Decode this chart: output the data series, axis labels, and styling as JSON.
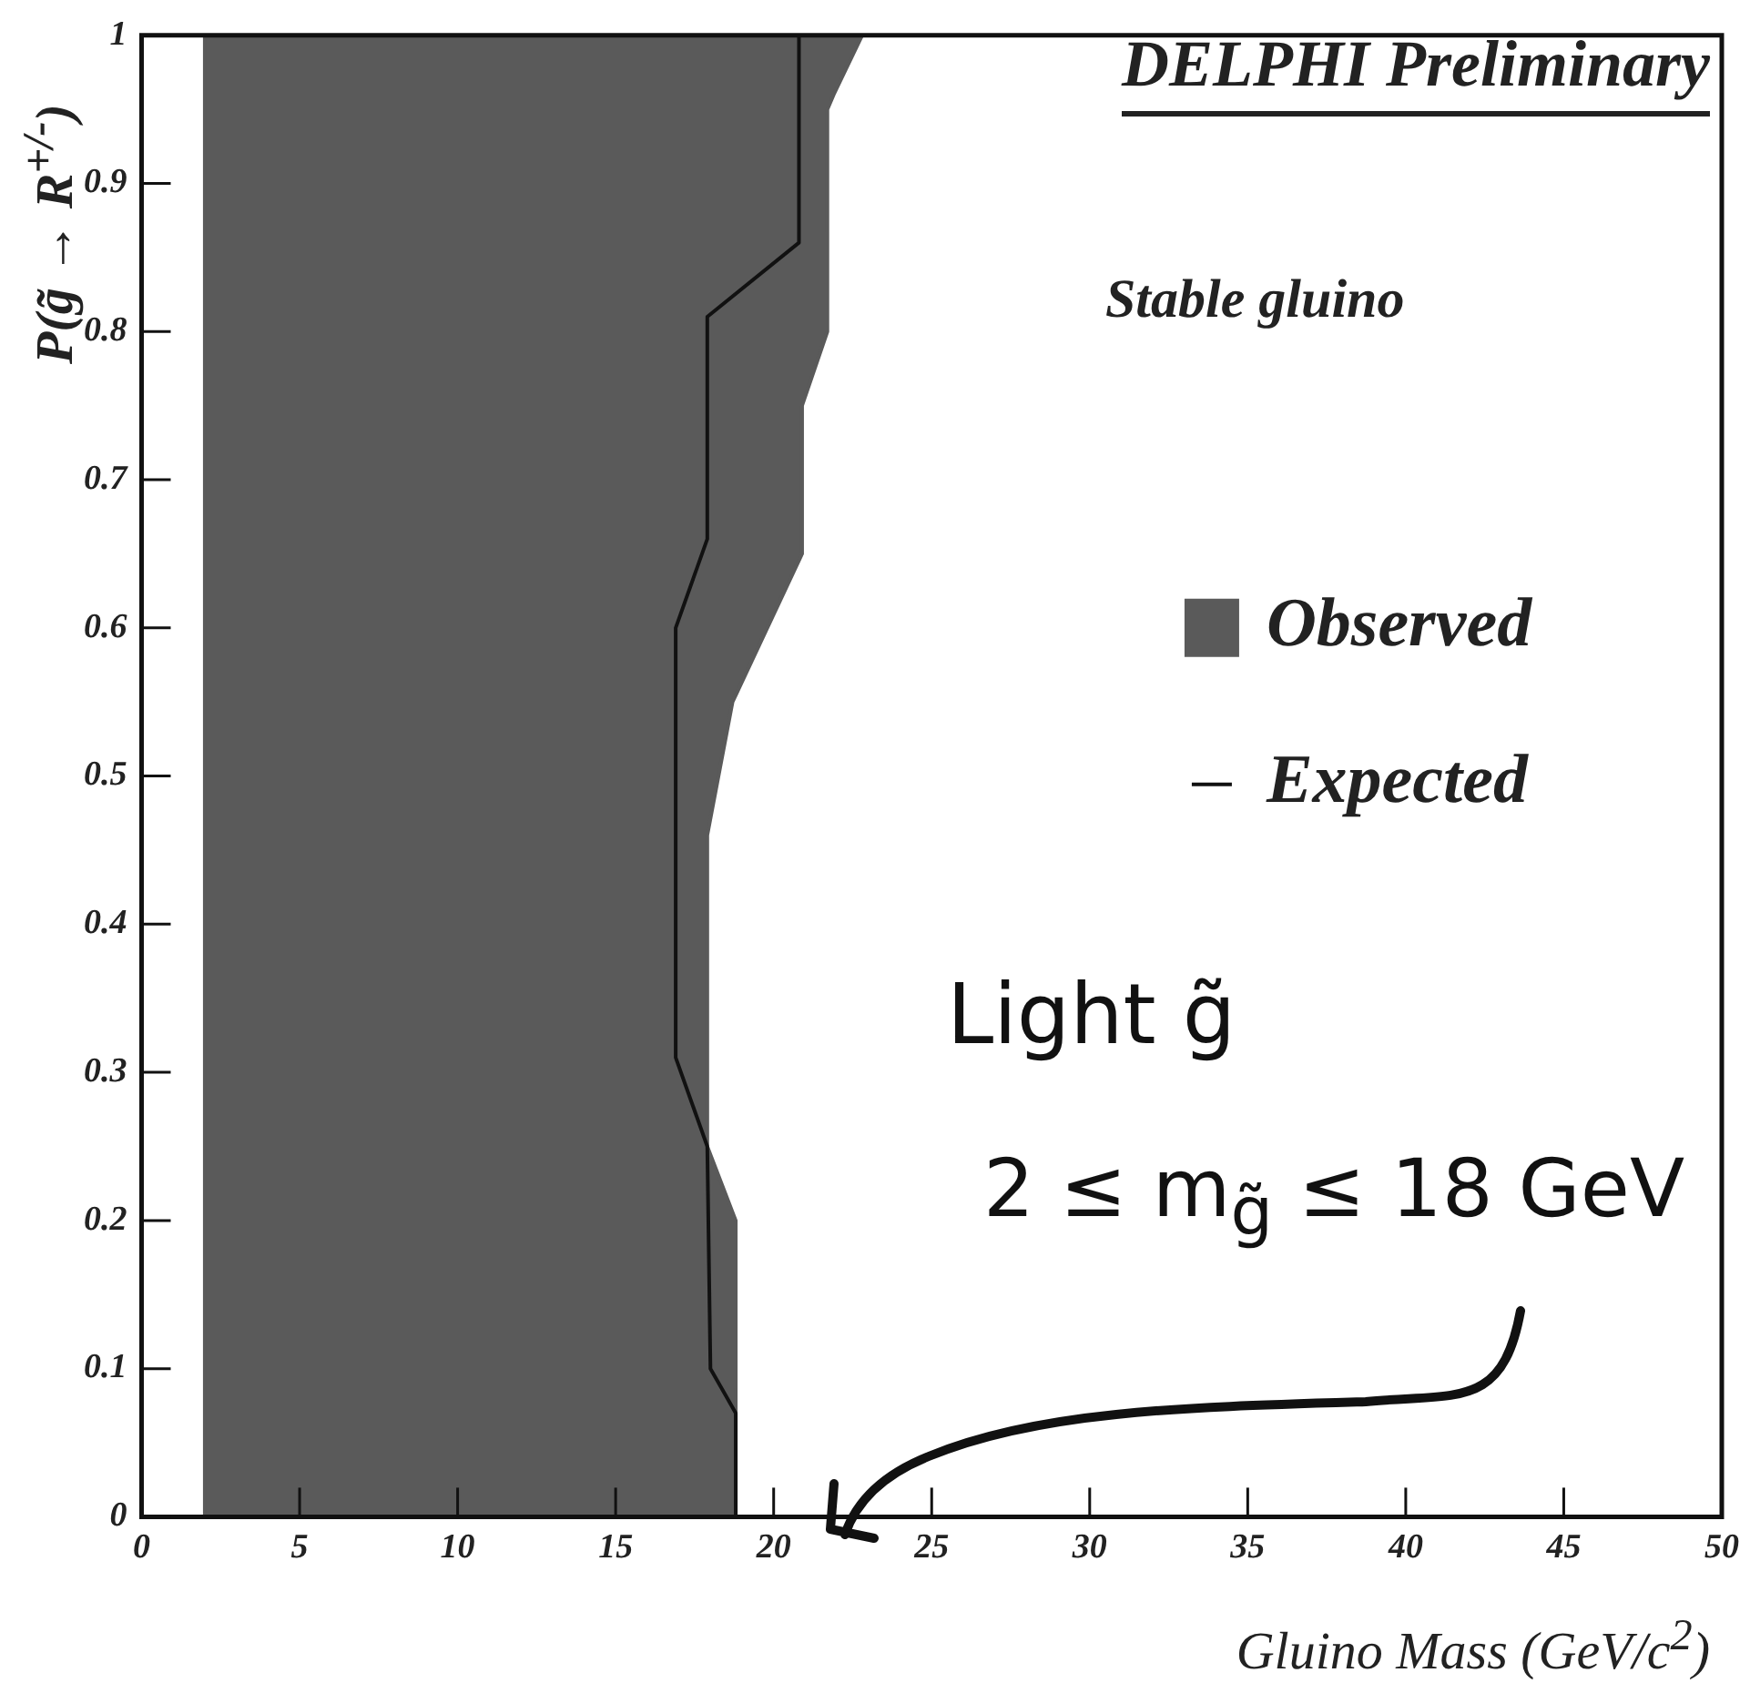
{
  "chart_data": {
    "type": "area",
    "title": "DELPHI Preliminary",
    "xlabel": "Gluino Mass (GeV/c$^{2}$)",
    "ylabel": "P(g̃ → R$^{+/-}$)",
    "annotations": [
      "Stable gluino",
      "Light g̃",
      "2 ≤ m$_{g̃}$ ≤ 18 GeV"
    ],
    "xlim": [
      0,
      50
    ],
    "xticks": [
      0,
      5,
      10,
      15,
      20,
      25,
      30,
      35,
      40,
      45,
      50
    ],
    "ylim": [
      0,
      1
    ],
    "yticks": [
      0,
      0.1,
      0.2,
      0.3,
      0.4,
      0.5,
      0.6,
      0.7,
      0.8,
      0.9,
      1
    ],
    "grid": false,
    "legend": "right",
    "marker": "none",
    "series": [
      {
        "name": "Observed",
        "type": "area",
        "color": "#5a5a5a",
        "x": [
          2,
          2,
          22.8,
          21.9,
          21.7,
          21.7,
          20.9,
          20.9,
          18.7,
          17.9,
          17.9,
          18.8,
          18.8,
          2
        ],
        "values": [
          0,
          1,
          1,
          0.96,
          0.95,
          0.8,
          0.75,
          0.65,
          0.55,
          0.46,
          0.25,
          0.2,
          0,
          0
        ]
      },
      {
        "name": "Expected",
        "type": "line",
        "color": "#111111",
        "x": [
          20.8,
          20.8,
          17.9,
          17.9,
          16.9,
          16.9,
          17.9,
          18,
          18.8,
          18.8
        ],
        "values": [
          1,
          0.86,
          0.81,
          0.66,
          0.6,
          0.31,
          0.25,
          0.1,
          0.07,
          0
        ]
      }
    ]
  }
}
